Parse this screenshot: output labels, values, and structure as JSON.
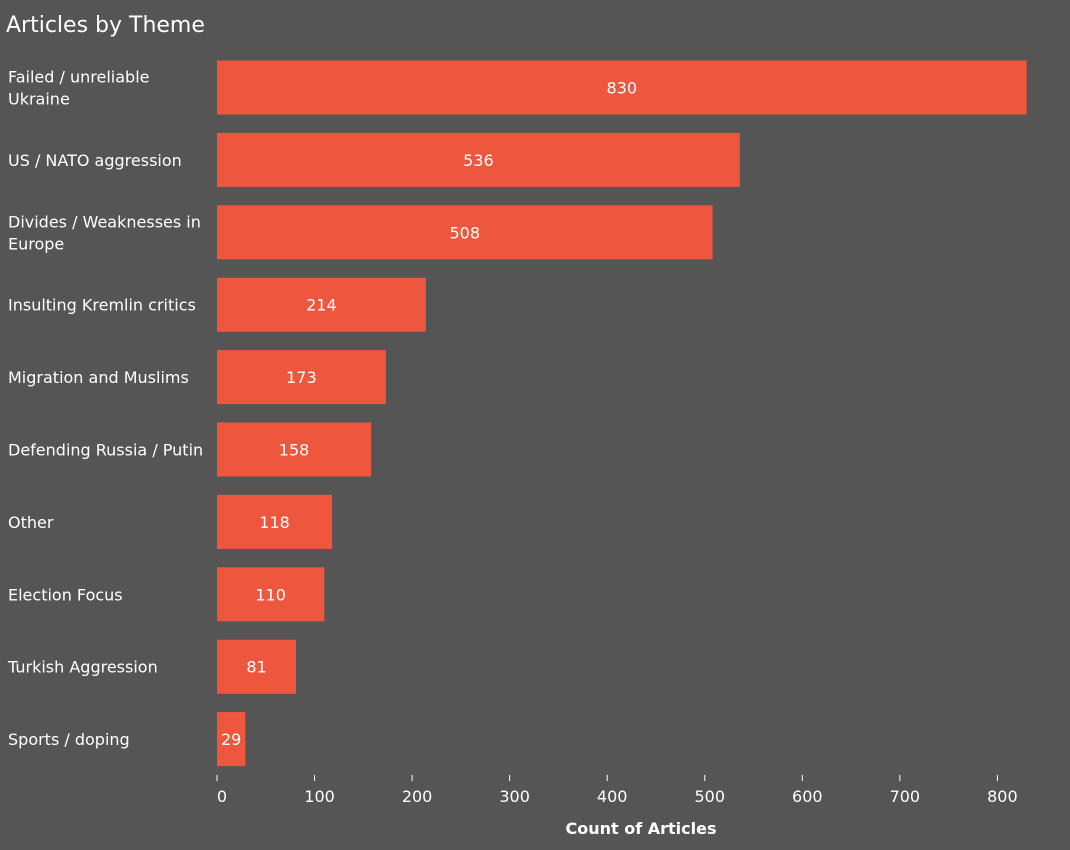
{
  "colors": {
    "background": "#555555",
    "bar": "#ef563e",
    "text": "#ffffff",
    "axis": "#ffffff"
  },
  "chart_data": {
    "type": "bar",
    "orientation": "horizontal",
    "title": "Articles by Theme",
    "xlabel": "Count of Articles",
    "ylabel": "",
    "categories": [
      "Failed / unreliable Ukraine",
      "US / NATO aggression",
      "Divides / Weaknesses in Europe",
      "Insulting Kremlin critics",
      "Migration and Muslims",
      "Defending Russia / Putin",
      "Other",
      "Election Focus",
      "Turkish Aggression",
      "Sports / doping"
    ],
    "values": [
      830,
      536,
      508,
      214,
      173,
      158,
      118,
      110,
      81,
      29
    ],
    "value_labels": [
      "830",
      "536",
      "508",
      "214",
      "173",
      "158",
      "118",
      "110",
      "81",
      "29"
    ],
    "xlim": [
      0,
      850
    ],
    "x_ticks": [
      0,
      100,
      200,
      300,
      400,
      500,
      600,
      700,
      800
    ],
    "x_tick_labels": [
      "0",
      "100",
      "200",
      "300",
      "400",
      "500",
      "600",
      "700",
      "800"
    ],
    "grid": false,
    "legend": "none"
  }
}
